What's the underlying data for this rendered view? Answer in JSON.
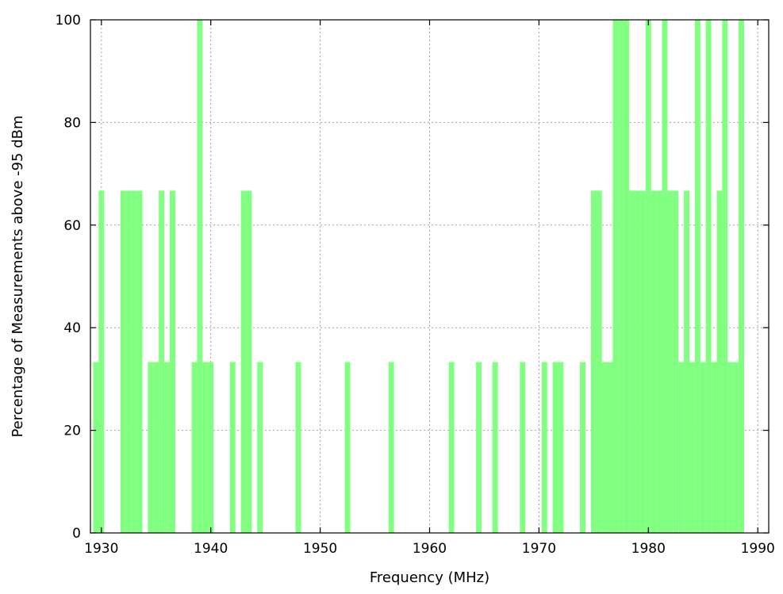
{
  "chart_data": {
    "type": "bar",
    "title": "",
    "xlabel": "Frequency (MHz)",
    "ylabel": "Percentage of Measurements above -95 dBm",
    "xlim": [
      1929,
      1991
    ],
    "ylim": [
      0,
      100
    ],
    "xticks": [
      1930,
      1940,
      1950,
      1960,
      1970,
      1980,
      1990
    ],
    "yticks": [
      0,
      20,
      40,
      60,
      80,
      100
    ],
    "grid": true,
    "bar_color": "#80ff80",
    "bin_width_mhz": 0.5,
    "x": [
      1929.5,
      1930.0,
      1932.0,
      1932.5,
      1933.0,
      1933.5,
      1934.5,
      1935.0,
      1935.5,
      1936.0,
      1936.5,
      1938.5,
      1939.0,
      1939.5,
      1940.0,
      1942.0,
      1943.0,
      1943.5,
      1944.5,
      1948.0,
      1952.5,
      1956.5,
      1962.0,
      1964.5,
      1966.0,
      1968.5,
      1970.5,
      1971.5,
      1972.0,
      1974.0,
      1975.0,
      1975.5,
      1976.0,
      1976.5,
      1977.0,
      1977.5,
      1978.0,
      1978.5,
      1979.0,
      1979.5,
      1980.0,
      1980.5,
      1981.0,
      1981.5,
      1982.0,
      1982.5,
      1983.0,
      1983.5,
      1984.0,
      1984.5,
      1985.0,
      1985.5,
      1986.0,
      1986.5,
      1987.0,
      1987.5,
      1988.0,
      1988.5
    ],
    "values": [
      33.3,
      66.7,
      66.7,
      66.7,
      66.7,
      66.7,
      33.3,
      33.3,
      66.7,
      33.3,
      66.7,
      33.3,
      100,
      33.3,
      33.3,
      33.3,
      66.7,
      66.7,
      33.3,
      33.3,
      33.3,
      33.3,
      33.3,
      33.3,
      33.3,
      33.3,
      33.3,
      33.3,
      33.3,
      33.3,
      66.7,
      66.7,
      33.3,
      33.3,
      100,
      100,
      100,
      66.7,
      66.7,
      66.7,
      100,
      66.7,
      66.7,
      100,
      66.7,
      66.7,
      33.3,
      66.7,
      33.3,
      100,
      33.3,
      100,
      33.3,
      66.7,
      100,
      33.3,
      33.3,
      100
    ]
  }
}
